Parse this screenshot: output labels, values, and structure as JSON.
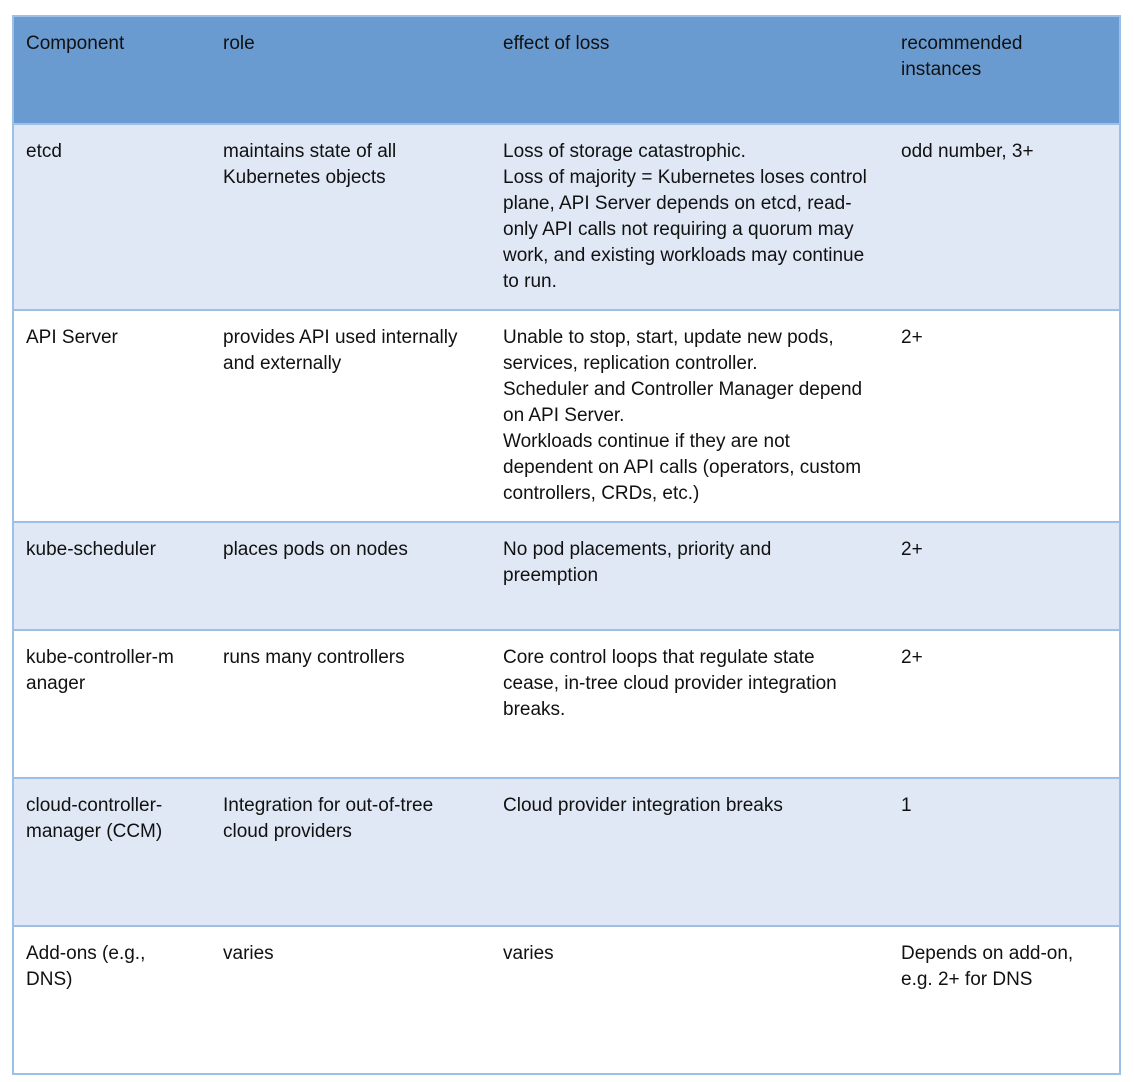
{
  "headers": [
    "Component",
    "role",
    "effect of loss",
    "recommended\ninstances"
  ],
  "rows": [
    {
      "component": "etcd",
      "role": "maintains state of all Kubernetes objects",
      "effect": "Loss of storage catastrophic.\nLoss of majority = Kubernetes loses control plane, API Server depends on etcd, read-only API calls not requiring a quorum may work, and existing workloads may continue to run.",
      "instances": "odd number, 3+"
    },
    {
      "component": "API Server",
      "role": "provides API used internally and externally",
      "effect": "Unable to stop, start, update new pods, services, replication controller.\nScheduler and Controller Manager depend on API Server.\nWorkloads continue if they are not dependent on API calls (operators, custom controllers, CRDs, etc.)",
      "instances": "2+"
    },
    {
      "component": "kube-scheduler",
      "role": "places pods on nodes",
      "effect": "No pod placements, priority and preemption",
      "instances": "2+"
    },
    {
      "component": "kube-controller-m\nanager",
      "role": "runs many controllers",
      "effect": "Core control loops that regulate state cease, in-tree cloud provider integration breaks.",
      "instances": "2+"
    },
    {
      "component": "cloud-controller-\nmanager (CCM)",
      "role": "Integration for out-of-tree cloud providers",
      "effect": "Cloud provider integration breaks",
      "instances": "1"
    },
    {
      "component": "Add-ons (e.g.,\nDNS)",
      "role": "varies",
      "effect": "varies",
      "instances": "Depends on add-on,\ne.g. 2+ for DNS"
    }
  ]
}
